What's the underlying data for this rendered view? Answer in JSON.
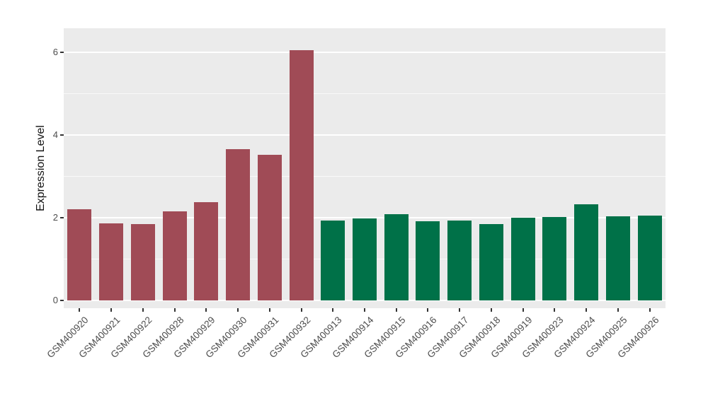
{
  "chart_data": {
    "type": "bar",
    "title": "",
    "xlabel": "",
    "ylabel": "Expression Level",
    "ylim": [
      0,
      6.5
    ],
    "yticks": [
      0,
      2,
      4,
      6
    ],
    "minor_yticks": [
      1,
      3,
      5
    ],
    "grid": true,
    "legend_position": "none",
    "panel_background": "#EBEBEB",
    "gridline_color": "#FFFFFF",
    "tick_text_color": "#4d4d4d",
    "group_colors": {
      "groupA": "#A04B56",
      "groupB": "#007148"
    },
    "categories": [
      "GSM400920",
      "GSM400921",
      "GSM400922",
      "GSM400928",
      "GSM400929",
      "GSM400930",
      "GSM400931",
      "GSM400932",
      "GSM400913",
      "GSM400914",
      "GSM400915",
      "GSM400916",
      "GSM400917",
      "GSM400918",
      "GSM400919",
      "GSM400923",
      "GSM400924",
      "GSM400925",
      "GSM400926"
    ],
    "values": [
      2.21,
      1.87,
      1.84,
      2.15,
      2.37,
      3.66,
      3.53,
      6.05,
      1.93,
      1.99,
      2.08,
      1.92,
      1.94,
      1.84,
      2.0,
      2.01,
      2.33,
      2.04,
      2.05
    ],
    "groups": [
      "groupA",
      "groupA",
      "groupA",
      "groupA",
      "groupA",
      "groupA",
      "groupA",
      "groupA",
      "groupB",
      "groupB",
      "groupB",
      "groupB",
      "groupB",
      "groupB",
      "groupB",
      "groupB",
      "groupB",
      "groupB",
      "groupB"
    ]
  }
}
